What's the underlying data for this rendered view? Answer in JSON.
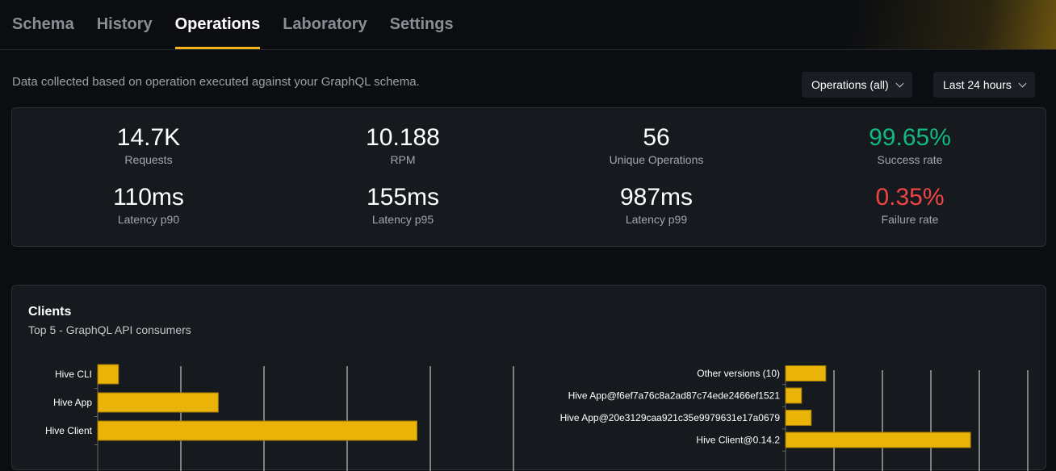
{
  "tabs": [
    "Schema",
    "History",
    "Operations",
    "Laboratory",
    "Settings"
  ],
  "active_tab": "Operations",
  "description": "Data collected based on operation executed against your GraphQL schema.",
  "filters": {
    "operations": "Operations (all)",
    "period": "Last 24 hours"
  },
  "stats": [
    {
      "value": "14.7K",
      "label": "Requests"
    },
    {
      "value": "10.188",
      "label": "RPM"
    },
    {
      "value": "56",
      "label": "Unique Operations"
    },
    {
      "value": "99.65%",
      "label": "Success rate",
      "color": "#10b981"
    },
    {
      "value": "110ms",
      "label": "Latency p90"
    },
    {
      "value": "155ms",
      "label": "Latency p95"
    },
    {
      "value": "987ms",
      "label": "Latency p99"
    },
    {
      "value": "0.35%",
      "label": "Failure rate",
      "color": "#ef4444"
    }
  ],
  "clients": {
    "title": "Clients",
    "subtitle": "Top 5 - GraphQL API consumers"
  },
  "chart_data": [
    {
      "type": "bar",
      "orientation": "horizontal",
      "grid": true,
      "color": "#eab308",
      "categories": [
        "Hive CLI",
        "Hive App",
        "Hive Client"
      ],
      "values": [
        0.25,
        1.45,
        3.84
      ]
    },
    {
      "type": "bar",
      "orientation": "horizontal",
      "grid": true,
      "color": "#eab308",
      "categories": [
        "Other versions (10)",
        "Hive App@f6ef7a76c8a2ad87c74ede2466ef1521",
        "Hive App@20e3129caa921c35e9979631e17a0679",
        "Hive Client@0.14.2"
      ],
      "values": [
        0.83,
        0.33,
        0.53,
        3.82
      ]
    }
  ]
}
